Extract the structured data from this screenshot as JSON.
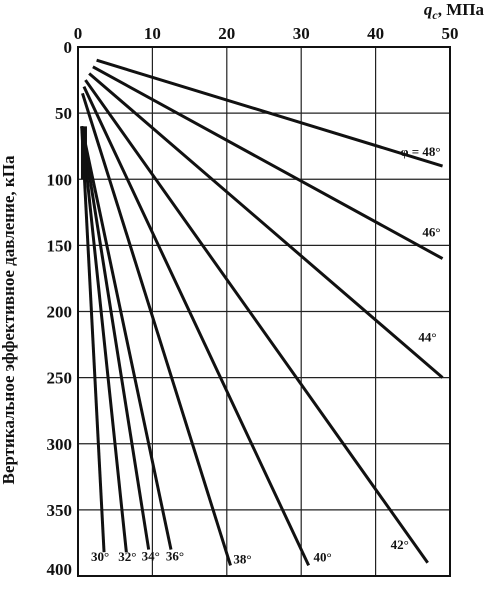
{
  "chart_data": {
    "type": "line",
    "xlabel_symbol": "q",
    "xlabel_subscript": "c",
    "xlabel_unit": ", МПа",
    "ylabel": "Вертикальное эффективное давление, кПа",
    "xlim": [
      0,
      50
    ],
    "ylim": [
      0,
      400
    ],
    "y_inverted": true,
    "x_ticks": [
      0,
      10,
      20,
      30,
      40,
      50
    ],
    "y_ticks": [
      0,
      50,
      100,
      150,
      200,
      250,
      300,
      350,
      400
    ],
    "grid": true,
    "label_prefix": "φ = ",
    "series": [
      {
        "name": "48°",
        "label": "φ = 48°",
        "points": [
          [
            2.5,
            10
          ],
          [
            49,
            90
          ]
        ]
      },
      {
        "name": "46°",
        "label": "46°",
        "points": [
          [
            2.0,
            15
          ],
          [
            49,
            160
          ]
        ]
      },
      {
        "name": "44°",
        "label": "44°",
        "points": [
          [
            1.5,
            20
          ],
          [
            49,
            250
          ]
        ]
      },
      {
        "name": "42°",
        "label": "42°",
        "points": [
          [
            1.0,
            25
          ],
          [
            47,
            390
          ]
        ]
      },
      {
        "name": "40°",
        "label": "40°",
        "points": [
          [
            0.8,
            30
          ],
          [
            31,
            392
          ]
        ]
      },
      {
        "name": "38°",
        "label": "38°",
        "points": [
          [
            0.6,
            35
          ],
          [
            20.5,
            392
          ]
        ]
      },
      {
        "name": "36°",
        "label": "36°",
        "points": [
          [
            0.5,
            60
          ],
          [
            12.5,
            380
          ]
        ]
      },
      {
        "name": "34°",
        "label": "34°",
        "points": [
          [
            0.5,
            60
          ],
          [
            9.5,
            380
          ]
        ]
      },
      {
        "name": "32°",
        "label": "32°",
        "points": [
          [
            0.5,
            60
          ],
          [
            6.5,
            382
          ]
        ]
      },
      {
        "name": "30°",
        "label": "30°",
        "points": [
          [
            0.5,
            60
          ],
          [
            3.5,
            382
          ]
        ]
      }
    ]
  }
}
